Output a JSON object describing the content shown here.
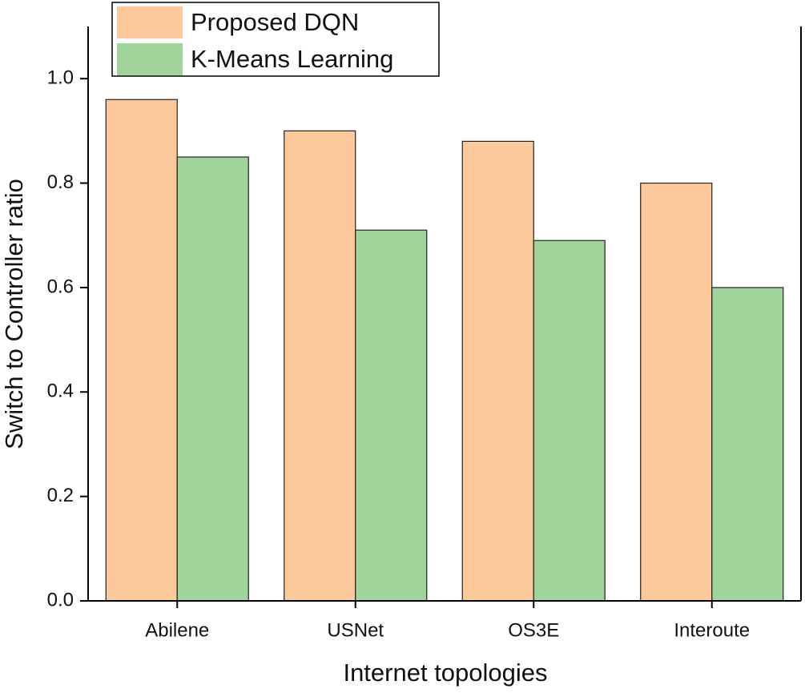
{
  "chart_data": {
    "type": "bar",
    "x_label": "Internet topologies",
    "y_label": "Switch to Controller ratio",
    "categories": [
      "Abilene",
      "USNet",
      "OS3E",
      "Interoute"
    ],
    "series": [
      {
        "name": "Proposed DQN",
        "color": "#fbc99a",
        "values": [
          0.96,
          0.9,
          0.88,
          0.8
        ]
      },
      {
        "name": "K-Means Learning",
        "color": "#9fd49b",
        "values": [
          0.85,
          0.71,
          0.69,
          0.6
        ]
      }
    ],
    "ylim": [
      0,
      1.1
    ],
    "yticks": [
      {
        "value": 0,
        "label": "0.0"
      },
      {
        "value": 0.2,
        "label": "0.2"
      },
      {
        "value": 0.4,
        "label": "0.4"
      },
      {
        "value": 0.6,
        "label": "0.6"
      },
      {
        "value": 0.8,
        "label": "0.8"
      },
      {
        "value": 1.0,
        "label": "1.0"
      }
    ],
    "legend": "top-left"
  }
}
